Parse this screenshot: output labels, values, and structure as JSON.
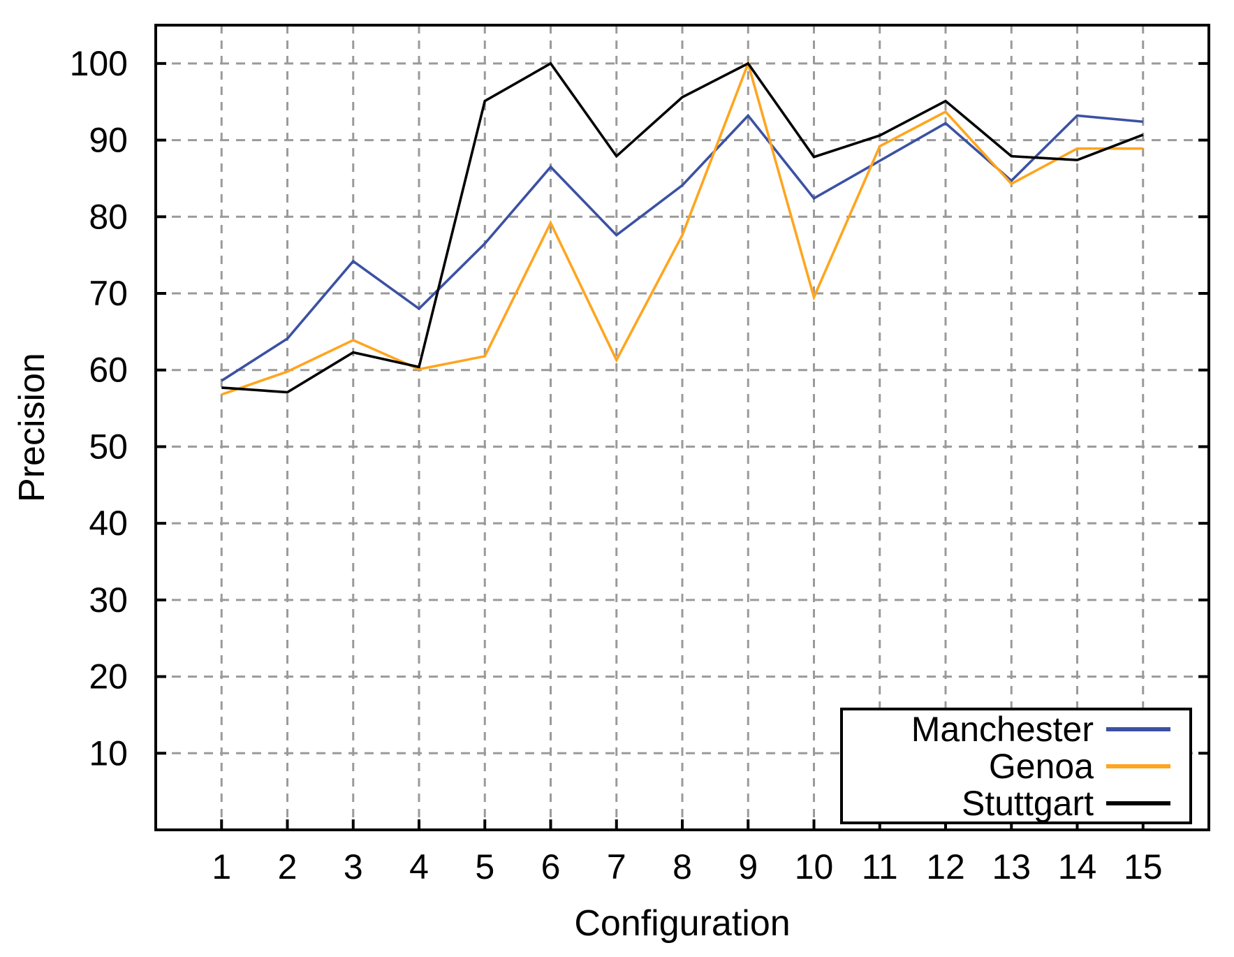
{
  "chart_data": {
    "type": "line",
    "title": "",
    "xlabel": "Configuration",
    "ylabel": "Precision",
    "x": [
      1,
      2,
      3,
      4,
      5,
      6,
      7,
      8,
      9,
      10,
      11,
      12,
      13,
      14,
      15
    ],
    "x_tick_labels": [
      "1",
      "2",
      "3",
      "4",
      "5",
      "6",
      "7",
      "8",
      "9",
      "10",
      "11",
      "12",
      "13",
      "14",
      "15"
    ],
    "y_ticks": [
      10,
      20,
      30,
      40,
      50,
      60,
      70,
      80,
      90,
      100
    ],
    "xlim": [
      0,
      16
    ],
    "ylim": [
      0,
      105
    ],
    "grid": true,
    "grid_style": "dashed",
    "legend_position": "bottom-right",
    "series": [
      {
        "name": "Manchester",
        "color": "#3B51A3",
        "values": [
          58.6,
          64.1,
          74.2,
          68.0,
          76.5,
          86.5,
          77.6,
          84.1,
          93.2,
          82.4,
          87.3,
          92.2,
          84.7,
          93.2,
          92.4
        ]
      },
      {
        "name": "Genoa",
        "color": "#FFA51F",
        "values": [
          56.8,
          59.8,
          63.9,
          60.1,
          61.8,
          79.2,
          61.3,
          77.6,
          100.0,
          69.5,
          89.2,
          93.7,
          84.3,
          88.9,
          88.9
        ]
      },
      {
        "name": "Stuttgart",
        "color": "#000000",
        "values": [
          57.7,
          57.1,
          62.3,
          60.4,
          95.1,
          100.0,
          87.9,
          95.6,
          100.0,
          87.8,
          90.6,
          95.1,
          87.9,
          87.4,
          90.7
        ]
      }
    ]
  },
  "colors": {
    "background": "#FFFFFF",
    "plot_border": "#000000",
    "grid": "#9A9A9A"
  }
}
